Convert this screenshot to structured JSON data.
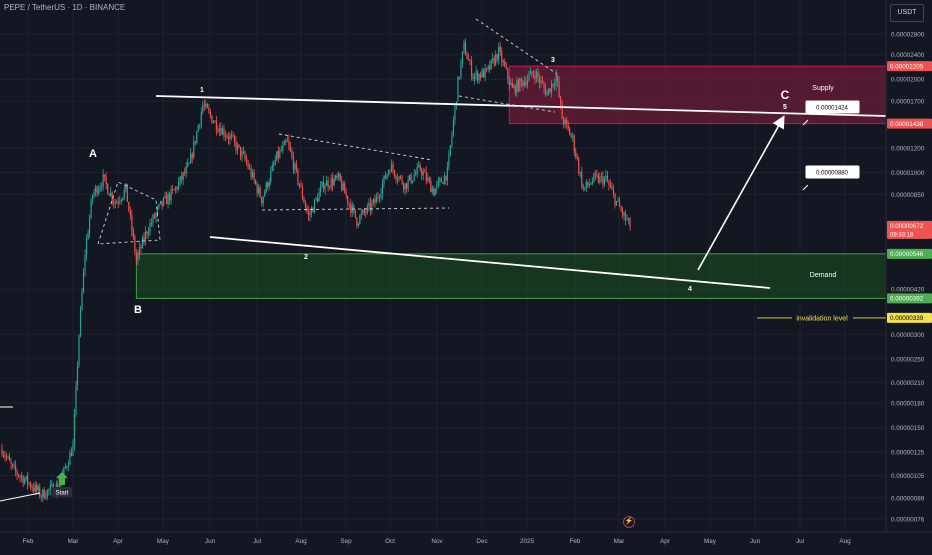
{
  "header": {
    "title": "PEPE / TetherUS · 1D · BINANCE"
  },
  "toolbar": {
    "unit_label": "USDT",
    "alert_icon": "lightning-icon"
  },
  "colors": {
    "background": "#131722",
    "grid": "#1e222d",
    "up": "#26a69a",
    "down": "#ef5350",
    "supply_fill": "#8b1e3f",
    "demand_fill": "#1b5e20",
    "invalidation": "#f2e14c",
    "annotation": "#ffffff",
    "start_arrow": "#4caf50"
  },
  "chart_data": {
    "type": "candlestick",
    "symbol": "PEPE / TetherUS",
    "timeframe": "1D",
    "exchange": "BINANCE",
    "y_scale": "log",
    "ylim": [
      7.3e-06,
      3.2e-05
    ],
    "y_ticks": [
      {
        "value": 2.8e-05,
        "label": "0.00002800"
      },
      {
        "value": 2.4e-05,
        "label": "0.00002400"
      },
      {
        "value": 2e-05,
        "label": "0.00002000"
      },
      {
        "value": 1.7e-05,
        "label": "0.00001700"
      },
      {
        "value": 1.2e-05,
        "label": "0.00001200"
      },
      {
        "value": 1e-05,
        "label": "0.00001000"
      },
      {
        "value": 8.5e-06,
        "label": "0.00000850"
      },
      {
        "value": 4.2e-06,
        "label": "0.00000420"
      },
      {
        "value": 3e-06,
        "label": "0.00000300"
      },
      {
        "value": 2.5e-06,
        "label": "0.00000250"
      },
      {
        "value": 2.1e-06,
        "label": "0.00000210"
      },
      {
        "value": 1.8e-06,
        "label": "0.00000180"
      },
      {
        "value": 1.5e-06,
        "label": "0.00000150"
      },
      {
        "value": 1.25e-06,
        "label": "0.00000125"
      },
      {
        "value": 1.05e-06,
        "label": "0.00000105"
      },
      {
        "value": 8.9e-07,
        "label": "0.00000089"
      },
      {
        "value": 7.6e-07,
        "label": "0.00000076"
      }
    ],
    "x_ticks": [
      "Feb",
      "Mar",
      "Apr",
      "May",
      "Jun",
      "Jul",
      "Aug",
      "Sep",
      "Oct",
      "Nov",
      "Dec",
      "2025",
      "Feb",
      "Mar",
      "Apr",
      "May",
      "Jun",
      "Jul",
      "Aug"
    ],
    "price_badges": [
      {
        "value": 2.205e-05,
        "label": "0.00002205",
        "color": "#ef5350",
        "text_color": "#ffffff"
      },
      {
        "value": 1.438e-05,
        "label": "0.00001438",
        "color": "#ef5350",
        "text_color": "#ffffff"
      },
      {
        "value": 6.72e-06,
        "label": "0.00000672",
        "sublabel": "09:33:18",
        "color": "#ef5350",
        "text_color": "#ffffff"
      },
      {
        "value": 5.46e-06,
        "label": "0.00000546",
        "color": "#4caf50",
        "text_color": "#ffffff"
      },
      {
        "value": 3.92e-06,
        "label": "0.00000392",
        "color": "#4caf50",
        "text_color": "#ffffff"
      },
      {
        "value": 3.39e-06,
        "label": "0.00000339",
        "color": "#f2e14c",
        "text_color": "#000000"
      }
    ],
    "zones": [
      {
        "name": "Supply",
        "top": 2.205e-05,
        "bottom": 1.438e-05,
        "from": "2024-12-16",
        "to": "end"
      },
      {
        "name": "Demand",
        "top": 5.46e-06,
        "bottom": 3.92e-06,
        "from": "2024-04-13",
        "to": "end"
      }
    ],
    "invalidation": {
      "label": "invalidation level",
      "value": 3.39e-06
    },
    "targets": [
      {
        "label": "0.00001424",
        "value": 1.424e-05
      },
      {
        "label": "0.00000880",
        "value": 8.8e-06
      }
    ],
    "wave_labels": [
      "1",
      "2",
      "3",
      "4",
      "5",
      "A",
      "B",
      "C"
    ],
    "start_label": "Start",
    "last_price": 6.72e-06
  }
}
